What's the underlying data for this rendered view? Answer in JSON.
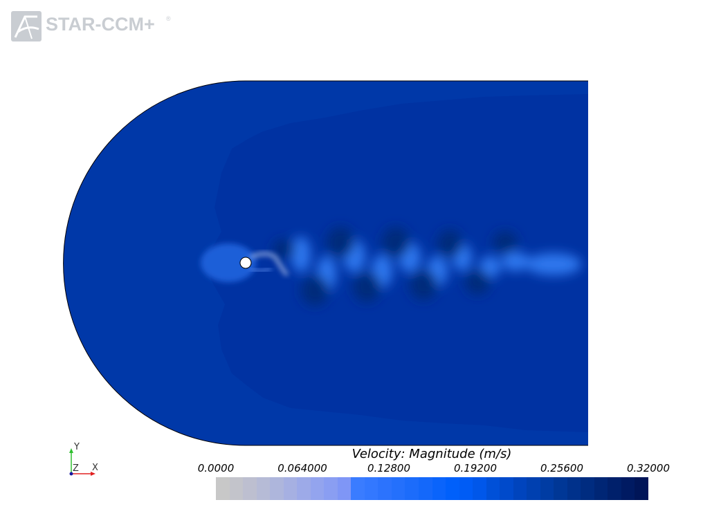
{
  "branding": {
    "product_name": "STAR-CCM+",
    "registered_mark": "®",
    "logo_icon": "star-ccm-logo-icon"
  },
  "triad": {
    "y_label": "Y",
    "z_label": "Z",
    "x_label": "X"
  },
  "legend": {
    "title": "Velocity: Magnitude (m/s)",
    "min": 0.0,
    "max": 0.32,
    "tick_labels": [
      "0.0000",
      "0.064000",
      "0.12800",
      "0.19200",
      "0.25600",
      "0.32000"
    ],
    "colors": [
      "#c8c8c8",
      "#c3c4cb",
      "#bdbfd0",
      "#b6bbd6",
      "#aeb6dc",
      "#a6b0e2",
      "#9daae8",
      "#93a4ee",
      "#8a9ef2",
      "#7f96f6",
      "#3a7cff",
      "#3378ff",
      "#2c73fd",
      "#2470fc",
      "#1c6cfb",
      "#1468fa",
      "#0a64fb",
      "#0060fb",
      "#005cf5",
      "#0057ea",
      "#0050d8",
      "#004acb",
      "#0044bd",
      "#0040b0",
      "#003ca3",
      "#003796",
      "#00318b",
      "#002c80",
      "#002675",
      "#00206b",
      "#001a62",
      "#001558"
    ]
  },
  "field_colors": {
    "freestream": "#0038a8",
    "wake_region": "#0032a2",
    "stagnation": "#1f5ed8",
    "vortex_fast": "#2f77ee",
    "vortex_slow": "#002a7a",
    "cylinder": "#ffffff"
  }
}
